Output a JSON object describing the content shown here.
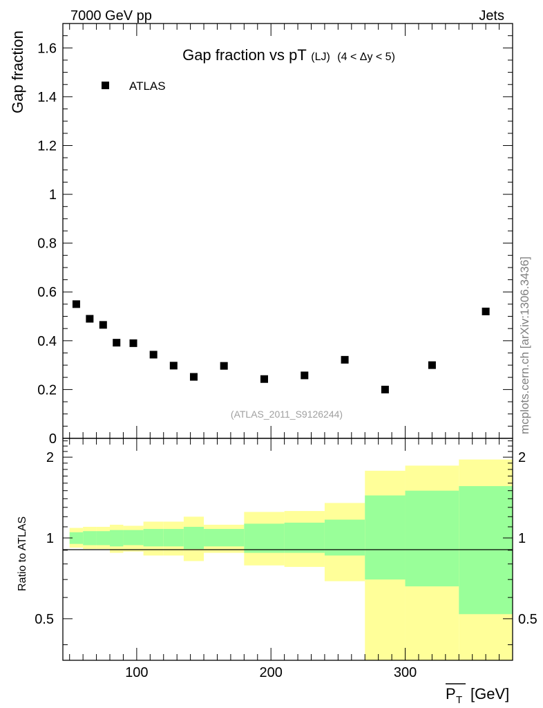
{
  "header": {
    "left": "7000 GeV pp",
    "right": "Jets"
  },
  "side_text": "mcplots.cern.ch [arXiv:1306.3436]",
  "chart_data": [
    {
      "type": "scatter",
      "title_main": "Gap fraction vs pT",
      "title_sub": "(LJ)",
      "title_range": "(4 < Δy < 5)",
      "ylabel": "Gap fraction",
      "watermark": "(ATLAS_2011_S9126244)",
      "legend": {
        "label": "ATLAS",
        "marker": "square",
        "position": "top-left"
      },
      "xlim": [
        45,
        380
      ],
      "ylim": [
        0,
        1.7
      ],
      "yticks": [
        {
          "v": 0,
          "label": "0"
        },
        {
          "v": 0.2,
          "label": "0.2"
        },
        {
          "v": 0.4,
          "label": "0.4"
        },
        {
          "v": 0.6,
          "label": "0.6"
        },
        {
          "v": 0.8,
          "label": "0.8"
        },
        {
          "v": 1.0,
          "label": "1"
        },
        {
          "v": 1.2,
          "label": "1.2"
        },
        {
          "v": 1.4,
          "label": "1.4"
        },
        {
          "v": 1.6,
          "label": "1.6"
        }
      ],
      "series": [
        {
          "name": "ATLAS",
          "points": [
            {
              "x": 55,
              "y": 0.55
            },
            {
              "x": 65,
              "y": 0.49
            },
            {
              "x": 75,
              "y": 0.465
            },
            {
              "x": 85,
              "y": 0.392
            },
            {
              "x": 97.5,
              "y": 0.39
            },
            {
              "x": 112.5,
              "y": 0.343
            },
            {
              "x": 127.5,
              "y": 0.298
            },
            {
              "x": 142.5,
              "y": 0.252
            },
            {
              "x": 165,
              "y": 0.297
            },
            {
              "x": 195,
              "y": 0.243
            },
            {
              "x": 225,
              "y": 0.258
            },
            {
              "x": 255,
              "y": 0.322
            },
            {
              "x": 285,
              "y": 0.2
            },
            {
              "x": 320,
              "y": 0.3
            },
            {
              "x": 360,
              "y": 0.52
            }
          ]
        }
      ]
    },
    {
      "type": "area",
      "ylabel": "Ratio to ATLAS",
      "xlabel": "P",
      "xlabel_sub": "T",
      "xlabel_unit": "[GeV]",
      "xlim": [
        45,
        380
      ],
      "ylim": [
        0.35,
        2.35
      ],
      "yscale": "log",
      "xticks": [
        {
          "v": 100,
          "label": "100"
        },
        {
          "v": 200,
          "label": "200"
        },
        {
          "v": 300,
          "label": "300"
        }
      ],
      "yticks": [
        {
          "v": 0.5,
          "label": "0.5"
        },
        {
          "v": 1,
          "label": "1"
        },
        {
          "v": 2,
          "label": "2"
        }
      ],
      "bins": [
        {
          "lo": 50,
          "hi": 60,
          "inner": [
            0.95,
            1.05
          ],
          "outer": [
            0.92,
            1.09
          ]
        },
        {
          "lo": 60,
          "hi": 70,
          "inner": [
            0.94,
            1.06
          ],
          "outer": [
            0.91,
            1.1
          ]
        },
        {
          "lo": 70,
          "hi": 80,
          "inner": [
            0.94,
            1.06
          ],
          "outer": [
            0.91,
            1.1
          ]
        },
        {
          "lo": 80,
          "hi": 90,
          "inner": [
            0.93,
            1.07
          ],
          "outer": [
            0.88,
            1.12
          ]
        },
        {
          "lo": 90,
          "hi": 105,
          "inner": [
            0.94,
            1.07
          ],
          "outer": [
            0.89,
            1.11
          ]
        },
        {
          "lo": 105,
          "hi": 120,
          "inner": [
            0.93,
            1.08
          ],
          "outer": [
            0.86,
            1.15
          ]
        },
        {
          "lo": 120,
          "hi": 135,
          "inner": [
            0.93,
            1.08
          ],
          "outer": [
            0.86,
            1.15
          ]
        },
        {
          "lo": 135,
          "hi": 150,
          "inner": [
            0.91,
            1.1
          ],
          "outer": [
            0.82,
            1.2
          ]
        },
        {
          "lo": 150,
          "hi": 180,
          "inner": [
            0.93,
            1.08
          ],
          "outer": [
            0.88,
            1.12
          ]
        },
        {
          "lo": 180,
          "hi": 210,
          "inner": [
            0.88,
            1.13
          ],
          "outer": [
            0.79,
            1.25
          ]
        },
        {
          "lo": 210,
          "hi": 240,
          "inner": [
            0.88,
            1.14
          ],
          "outer": [
            0.78,
            1.26
          ]
        },
        {
          "lo": 240,
          "hi": 270,
          "inner": [
            0.86,
            1.17
          ],
          "outer": [
            0.69,
            1.35
          ]
        },
        {
          "lo": 270,
          "hi": 300,
          "inner": [
            0.7,
            1.44
          ],
          "outer": [
            0.35,
            1.78
          ]
        },
        {
          "lo": 300,
          "hi": 340,
          "inner": [
            0.66,
            1.5
          ],
          "outer": [
            0.35,
            1.86
          ]
        },
        {
          "lo": 340,
          "hi": 380,
          "inner": [
            0.52,
            1.56
          ],
          "outer": [
            0.35,
            1.96
          ]
        }
      ],
      "colors": {
        "inner": "#99ff99",
        "outer": "#ffff99",
        "reference_line": "#000000"
      }
    }
  ]
}
